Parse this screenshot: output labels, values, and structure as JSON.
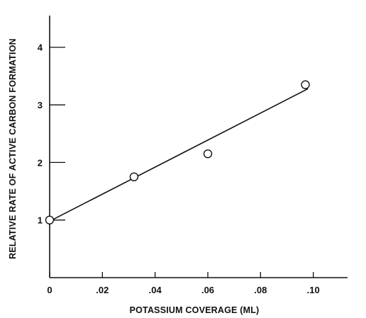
{
  "chart_data": {
    "type": "scatter",
    "title": "",
    "xlabel": "POTASSIUM COVERAGE (ML)",
    "ylabel": "RELATIVE RATE OF ACTIVE CARBON FORMATION",
    "xlim": [
      0,
      0.113
    ],
    "ylim": [
      0,
      4.55
    ],
    "x_ticks": [
      0,
      0.02,
      0.04,
      0.06,
      0.08,
      0.1
    ],
    "x_tick_labels": [
      "0",
      ".02",
      ".04",
      ".06",
      ".08",
      ".10"
    ],
    "y_ticks": [
      1,
      2,
      3,
      4
    ],
    "y_tick_labels": [
      "1",
      "2",
      "3",
      "4"
    ],
    "grid": false,
    "series": [
      {
        "points": [
          {
            "x": 0.0,
            "y": 1.0
          },
          {
            "x": 0.032,
            "y": 1.75
          },
          {
            "x": 0.06,
            "y": 2.15
          },
          {
            "x": 0.097,
            "y": 3.35
          }
        ]
      }
    ],
    "fit_line": {
      "x": [
        0.0,
        0.098
      ],
      "y": [
        0.98,
        3.28
      ]
    }
  }
}
